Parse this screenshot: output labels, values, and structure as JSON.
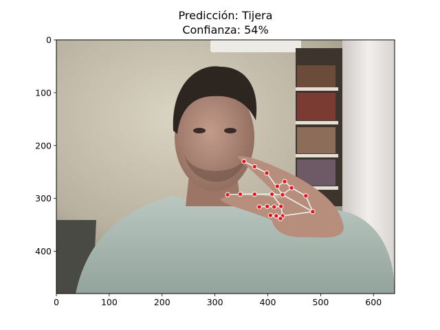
{
  "chart_data": {
    "type": "image",
    "title": "Predicción: Tijera",
    "subtitle": "Confianza: 54%",
    "xlabel": "",
    "ylabel": "",
    "xlim": [
      0,
      640
    ],
    "ylim": [
      480,
      0
    ],
    "xticks": [
      0,
      100,
      200,
      300,
      400,
      500,
      600
    ],
    "yticks": [
      0,
      100,
      200,
      300,
      400
    ],
    "grid": false,
    "image_description": "webcam photo of a man in a light grey sweatshirt holding up two fingers near his face",
    "landmarks": [
      {
        "id": 0,
        "x": 485,
        "y": 325
      },
      {
        "id": 1,
        "x": 472,
        "y": 295
      },
      {
        "id": 2,
        "x": 445,
        "y": 280
      },
      {
        "id": 3,
        "x": 432,
        "y": 268
      },
      {
        "id": 4,
        "x": 418,
        "y": 277
      },
      {
        "id": 5,
        "x": 428,
        "y": 293
      },
      {
        "id": 6,
        "x": 398,
        "y": 252
      },
      {
        "id": 7,
        "x": 375,
        "y": 240
      },
      {
        "id": 8,
        "x": 355,
        "y": 230
      },
      {
        "id": 9,
        "x": 408,
        "y": 292
      },
      {
        "id": 10,
        "x": 375,
        "y": 292
      },
      {
        "id": 11,
        "x": 348,
        "y": 292
      },
      {
        "id": 12,
        "x": 324,
        "y": 293
      },
      {
        "id": 13,
        "x": 425,
        "y": 315
      },
      {
        "id": 14,
        "x": 412,
        "y": 316
      },
      {
        "id": 15,
        "x": 399,
        "y": 315
      },
      {
        "id": 16,
        "x": 384,
        "y": 316
      },
      {
        "id": 17,
        "x": 428,
        "y": 333
      },
      {
        "id": 18,
        "x": 416,
        "y": 333
      },
      {
        "id": 19,
        "x": 405,
        "y": 332
      },
      {
        "id": 20,
        "x": 424,
        "y": 338
      }
    ],
    "connections": [
      [
        0,
        1
      ],
      [
        1,
        2
      ],
      [
        2,
        3
      ],
      [
        3,
        4
      ],
      [
        2,
        5
      ],
      [
        5,
        6
      ],
      [
        6,
        7
      ],
      [
        7,
        8
      ],
      [
        5,
        9
      ],
      [
        9,
        10
      ],
      [
        10,
        11
      ],
      [
        11,
        12
      ],
      [
        9,
        13
      ],
      [
        13,
        14
      ],
      [
        14,
        15
      ],
      [
        15,
        16
      ],
      [
        13,
        17
      ],
      [
        17,
        18
      ],
      [
        18,
        19
      ],
      [
        19,
        20
      ],
      [
        0,
        17
      ],
      [
        0,
        5
      ]
    ],
    "colors": {
      "landmark_fill": "#e8141c",
      "landmark_stroke": "#ffffff",
      "connection": "#f2f2f2",
      "wall": "#d8d2c1",
      "sweater": "#b3c2bb"
    }
  }
}
